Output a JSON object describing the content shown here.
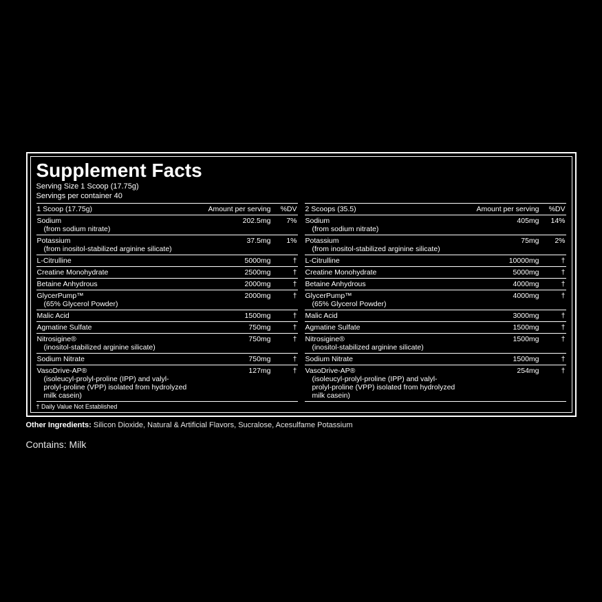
{
  "title": "Supplement Facts",
  "serving_size": "Serving Size 1 Scoop (17.75g)",
  "servings_per_container": "Servings per container 40",
  "columns": [
    {
      "header_scoop": "1 Scoop (17.75g)",
      "header_amount": "Amount per serving",
      "header_dv": "%DV",
      "rows": [
        {
          "name": "Sodium",
          "sub": "(from sodium nitrate)",
          "amount": "202.5mg",
          "dv": "7%"
        },
        {
          "name": "Potassium",
          "sub": "(from inositol-stabilized arginine silicate)",
          "amount": "37.5mg",
          "dv": "1%"
        },
        {
          "name": "L-Citrulline",
          "sub": "",
          "amount": "5000mg",
          "dv": "†"
        },
        {
          "name": "Creatine Monohydrate",
          "sub": "",
          "amount": "2500mg",
          "dv": "†"
        },
        {
          "name": "Betaine Anhydrous",
          "sub": "",
          "amount": "2000mg",
          "dv": "†"
        },
        {
          "name": "GlycerPump™",
          "sub": "(65% Glycerol Powder)",
          "amount": "2000mg",
          "dv": "†"
        },
        {
          "name": "Malic Acid",
          "sub": "",
          "amount": "1500mg",
          "dv": "†"
        },
        {
          "name": "Agmatine Sulfate",
          "sub": "",
          "amount": "750mg",
          "dv": "†"
        },
        {
          "name": "Nitrosigine®",
          "sub": "(inositol-stabilized arginine silicate)",
          "amount": "750mg",
          "dv": "†"
        },
        {
          "name": "Sodium Nitrate",
          "sub": "",
          "amount": "750mg",
          "dv": "†"
        },
        {
          "name": "VasoDrive-AP®",
          "sub": "(isoleucyl-prolyl-proline (IPP) and valyl-prolyl-proline (VPP) isolated from hydrolyzed milk casein)",
          "amount": "127mg",
          "dv": "†"
        }
      ]
    },
    {
      "header_scoop": "2 Scoops (35.5)",
      "header_amount": "Amount per serving",
      "header_dv": "%DV",
      "rows": [
        {
          "name": "Sodium",
          "sub": "(from sodium nitrate)",
          "amount": "405mg",
          "dv": "14%"
        },
        {
          "name": "Potassium",
          "sub": "(from inositol-stabilized arginine silicate)",
          "amount": "75mg",
          "dv": "2%"
        },
        {
          "name": "L-Citrulline",
          "sub": "",
          "amount": "10000mg",
          "dv": "†"
        },
        {
          "name": "Creatine Monohydrate",
          "sub": "",
          "amount": "5000mg",
          "dv": "†"
        },
        {
          "name": "Betaine Anhydrous",
          "sub": "",
          "amount": "4000mg",
          "dv": "†"
        },
        {
          "name": "GlycerPump™",
          "sub": "(65% Glycerol Powder)",
          "amount": "4000mg",
          "dv": "†"
        },
        {
          "name": "Malic Acid",
          "sub": "",
          "amount": "3000mg",
          "dv": "†"
        },
        {
          "name": "Agmatine Sulfate",
          "sub": "",
          "amount": "1500mg",
          "dv": "†"
        },
        {
          "name": "Nitrosigine®",
          "sub": "(inositol-stabilized arginine silicate)",
          "amount": "1500mg",
          "dv": "†"
        },
        {
          "name": "Sodium Nitrate",
          "sub": "",
          "amount": "1500mg",
          "dv": "†"
        },
        {
          "name": "VasoDrive-AP®",
          "sub": "(isoleucyl-prolyl-proline (IPP) and valyl-prolyl-proline (VPP) isolated from hydrolyzed milk casein)",
          "amount": "254mg",
          "dv": "†"
        }
      ]
    }
  ],
  "footnote": "† Daily Value Not Established",
  "other_ingredients_label": "Other Ingredients:",
  "other_ingredients": " Silicon Dioxide, Natural & Artificial Flavors, Sucralose, Acesulfame Potassium",
  "contains": "Contains: Milk"
}
